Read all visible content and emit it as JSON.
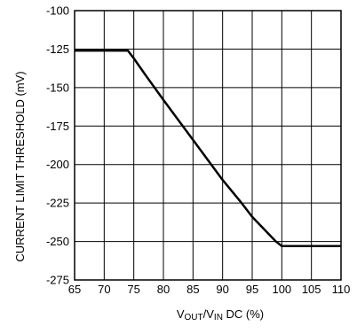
{
  "chart_data": {
    "type": "line",
    "title": "",
    "xlabel_parts": {
      "v1": "V",
      "sub1": "OUT",
      "slash": "/V",
      "sub2": "IN",
      "rest": " DC (%)"
    },
    "ylabel": "CURRENT LIMIT THRESHOLD (mV)",
    "xlim": [
      65,
      110
    ],
    "ylim": [
      -275,
      -100
    ],
    "xticks": [
      65,
      70,
      75,
      80,
      85,
      90,
      95,
      100,
      105,
      110
    ],
    "yticks": [
      -100,
      -125,
      -150,
      -175,
      -200,
      -225,
      -250,
      -275
    ],
    "grid": true,
    "legend": "none",
    "series": [
      {
        "color": "#000000",
        "x": [
          65,
          74,
          75,
          77,
          80,
          85,
          90,
          93,
          95,
          96,
          97,
          98,
          99,
          100,
          110
        ],
        "y": [
          -126,
          -126,
          -131,
          -142,
          -158,
          -184,
          -210,
          -224,
          -234,
          -238,
          -242,
          -246,
          -250,
          -253,
          -253
        ]
      }
    ]
  }
}
